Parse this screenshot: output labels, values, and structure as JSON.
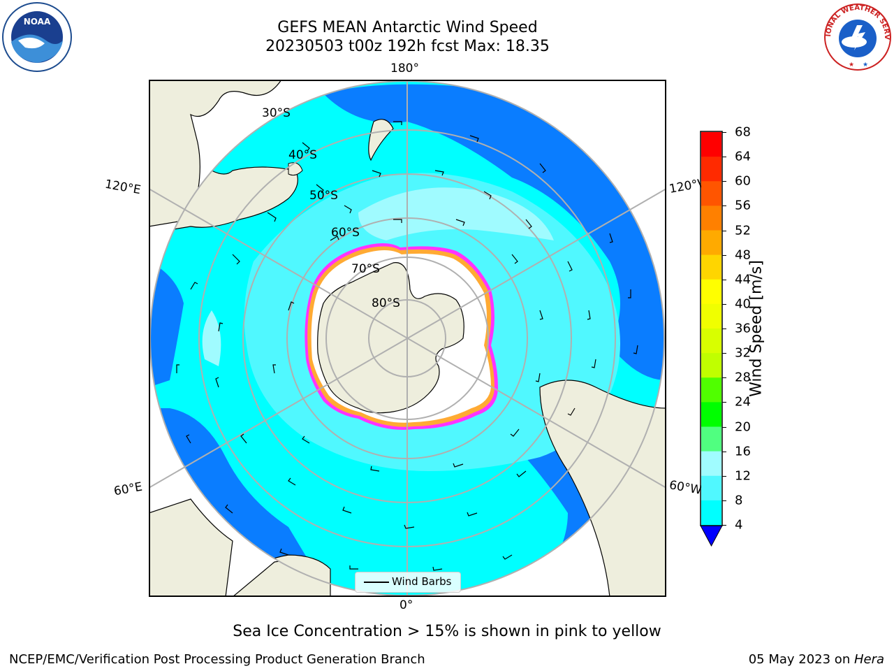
{
  "header": {
    "title": "GEFS MEAN Antarctic Wind Speed",
    "subtitle": "20230503 t00z 192h fcst   Max: 18.35"
  },
  "logos": {
    "left": "noaa-logo",
    "right": "national-weather-service-logo",
    "left_text": "NOAA",
    "right_text": "NATIONAL WEATHER SERVICE"
  },
  "map": {
    "projection": "south-polar-stereographic",
    "longitude_labels": [
      "180°",
      "120°E",
      "120°W",
      "60°E",
      "60°W",
      "0°"
    ],
    "latitude_labels": [
      "30°S",
      "40°S",
      "50°S",
      "60°S",
      "70°S",
      "80°S"
    ],
    "legend_label": "Wind Barbs",
    "colors": {
      "land": "#eeeedd",
      "ice": "#ffffff",
      "ice_edge": [
        "#ff33ff",
        "#ffaa33",
        "#ffdd00"
      ],
      "wind_4_8": "#0a7dff",
      "wind_8_12": "#00ffff",
      "wind_12_16": "#40f6ff",
      "wind_16_20": "#a0fbff"
    }
  },
  "colorbar": {
    "label": "Wind Speed [m/s]",
    "ticks": [
      "68",
      "64",
      "60",
      "56",
      "52",
      "48",
      "44",
      "40",
      "36",
      "32",
      "28",
      "24",
      "20",
      "16",
      "12",
      "8",
      "4"
    ],
    "colors": [
      "#ff0000",
      "#ff2a00",
      "#ff5500",
      "#ff8000",
      "#ffaa00",
      "#ffd500",
      "#ffff00",
      "#f0ff00",
      "#d8ff00",
      "#c0ff00",
      "#50ff00",
      "#00ff00",
      "#50ff80",
      "#a0fcff",
      "#50f8ff",
      "#00ffff",
      "#0a7dff"
    ],
    "under_color": "#0000ff"
  },
  "caption": "Sea Ice Concentration > 15% is shown in pink to yellow",
  "footer": {
    "left": "NCEP/EMC/Verification Post Processing Product Generation Branch",
    "right_date": "05 May 2023 on ",
    "right_host": "Hera"
  }
}
